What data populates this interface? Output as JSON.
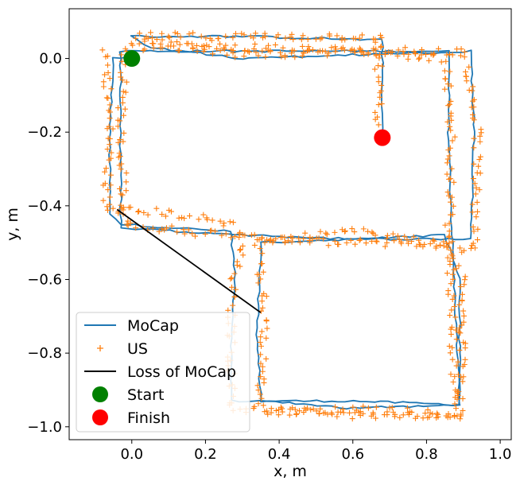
{
  "chart_data": {
    "type": "line",
    "xlabel": "x, m",
    "ylabel": "y, m",
    "xlim": [
      -0.17,
      1.03
    ],
    "ylim": [
      -1.035,
      0.135
    ],
    "xticks": [
      0.0,
      0.2,
      0.4,
      0.6,
      0.8,
      1.0
    ],
    "xtick_labels": [
      "0.0",
      "0.2",
      "0.4",
      "0.6",
      "0.8",
      "1.0"
    ],
    "yticks": [
      0.0,
      -0.2,
      -0.4,
      -0.6,
      -0.8,
      -1.0
    ],
    "ytick_labels": [
      "0.0",
      "−0.2",
      "−0.4",
      "−0.6",
      "−0.8",
      "−1.0"
    ],
    "grid": false,
    "legend_position": "bottom-left",
    "legend": [
      {
        "label": "MoCap",
        "kind": "line",
        "color": "#1f77b4"
      },
      {
        "label": "US",
        "kind": "plus",
        "color": "#ff7f0e"
      },
      {
        "label": "Loss of MoCap",
        "kind": "line",
        "color": "#000000"
      },
      {
        "label": "Start",
        "kind": "circle",
        "color": "#008000"
      },
      {
        "label": "Finish",
        "kind": "circle",
        "color": "#ff0000"
      }
    ],
    "series": [
      {
        "name": "MoCap",
        "kind": "line",
        "color": "#1f77b4",
        "laps": [
          [
            [
              0.0,
              0.0
            ],
            [
              -0.05,
              0.0
            ],
            [
              -0.06,
              -0.2
            ],
            [
              -0.06,
              -0.42
            ],
            [
              -0.03,
              -0.45
            ],
            [
              0.27,
              -0.47
            ],
            [
              0.28,
              -0.6
            ],
            [
              0.27,
              -0.8
            ],
            [
              0.27,
              -0.93
            ],
            [
              0.35,
              -0.93
            ],
            [
              0.6,
              -0.93
            ],
            [
              0.89,
              -0.94
            ],
            [
              0.89,
              -0.6
            ],
            [
              0.85,
              -0.48
            ],
            [
              0.6,
              -0.49
            ],
            [
              0.3,
              -0.48
            ],
            [
              -0.03,
              -0.46
            ],
            [
              -0.03,
              -0.2
            ],
            [
              -0.03,
              0.02
            ],
            [
              0.3,
              0.02
            ],
            [
              0.6,
              0.02
            ],
            [
              0.86,
              0.02
            ],
            [
              0.86,
              -0.2
            ],
            [
              0.87,
              -0.5
            ],
            [
              0.89,
              -0.94
            ]
          ],
          [
            [
              0.89,
              -0.94
            ],
            [
              0.6,
              -0.95
            ],
            [
              0.35,
              -0.93
            ],
            [
              0.34,
              -0.75
            ],
            [
              0.35,
              -0.5
            ],
            [
              0.6,
              -0.49
            ],
            [
              0.92,
              -0.49
            ],
            [
              0.93,
              -0.2
            ],
            [
              0.92,
              0.02
            ],
            [
              0.6,
              0.01
            ],
            [
              0.3,
              0.0
            ],
            [
              0.05,
              0.03
            ],
            [
              0.0,
              0.06
            ],
            [
              0.3,
              0.06
            ],
            [
              0.68,
              0.05
            ],
            [
              0.68,
              -0.21
            ]
          ]
        ]
      },
      {
        "name": "US",
        "kind": "scatter",
        "color": "#ff7f0e",
        "paths": [
          [
            [
              -0.07,
              0.02
            ],
            [
              -0.06,
              -0.2
            ],
            [
              -0.07,
              -0.41
            ],
            [
              -0.04,
              -0.41
            ],
            [
              0.1,
              -0.42
            ],
            [
              0.28,
              -0.45
            ],
            [
              0.3,
              -0.5
            ],
            [
              0.27,
              -0.63
            ],
            [
              0.27,
              -0.85
            ],
            [
              0.27,
              -0.95
            ],
            [
              0.45,
              -0.96
            ],
            [
              0.65,
              -0.95
            ],
            [
              0.89,
              -0.97
            ],
            [
              0.9,
              -0.6
            ],
            [
              0.85,
              -0.5
            ],
            [
              0.6,
              -0.5
            ],
            [
              0.35,
              -0.49
            ],
            [
              -0.02,
              -0.45
            ],
            [
              -0.03,
              -0.2
            ],
            [
              -0.02,
              0.03
            ],
            [
              0.3,
              0.03
            ],
            [
              0.62,
              0.02
            ],
            [
              0.85,
              0.0
            ],
            [
              0.87,
              -0.2
            ],
            [
              0.86,
              -0.48
            ],
            [
              0.88,
              -0.95
            ]
          ],
          [
            [
              0.9,
              -0.97
            ],
            [
              0.6,
              -0.97
            ],
            [
              0.35,
              -0.95
            ],
            [
              0.36,
              -0.7
            ],
            [
              0.34,
              -0.5
            ],
            [
              0.6,
              -0.47
            ],
            [
              0.93,
              -0.52
            ],
            [
              0.94,
              -0.2
            ],
            [
              0.9,
              0.02
            ],
            [
              0.6,
              0.02
            ],
            [
              0.3,
              0.01
            ],
            [
              0.02,
              0.05
            ],
            [
              0.02,
              0.06
            ],
            [
              0.3,
              0.06
            ],
            [
              0.67,
              0.06
            ],
            [
              0.67,
              -0.18
            ]
          ]
        ]
      },
      {
        "name": "Loss of MoCap",
        "kind": "line",
        "color": "#000000",
        "points": [
          [
            -0.04,
            -0.41
          ],
          [
            0.35,
            -0.69
          ]
        ]
      },
      {
        "name": "Start",
        "kind": "marker",
        "color": "#008000",
        "points": [
          [
            0.0,
            0.0
          ]
        ]
      },
      {
        "name": "Finish",
        "kind": "marker",
        "color": "#ff0000",
        "points": [
          [
            0.68,
            -0.215
          ]
        ]
      }
    ]
  }
}
